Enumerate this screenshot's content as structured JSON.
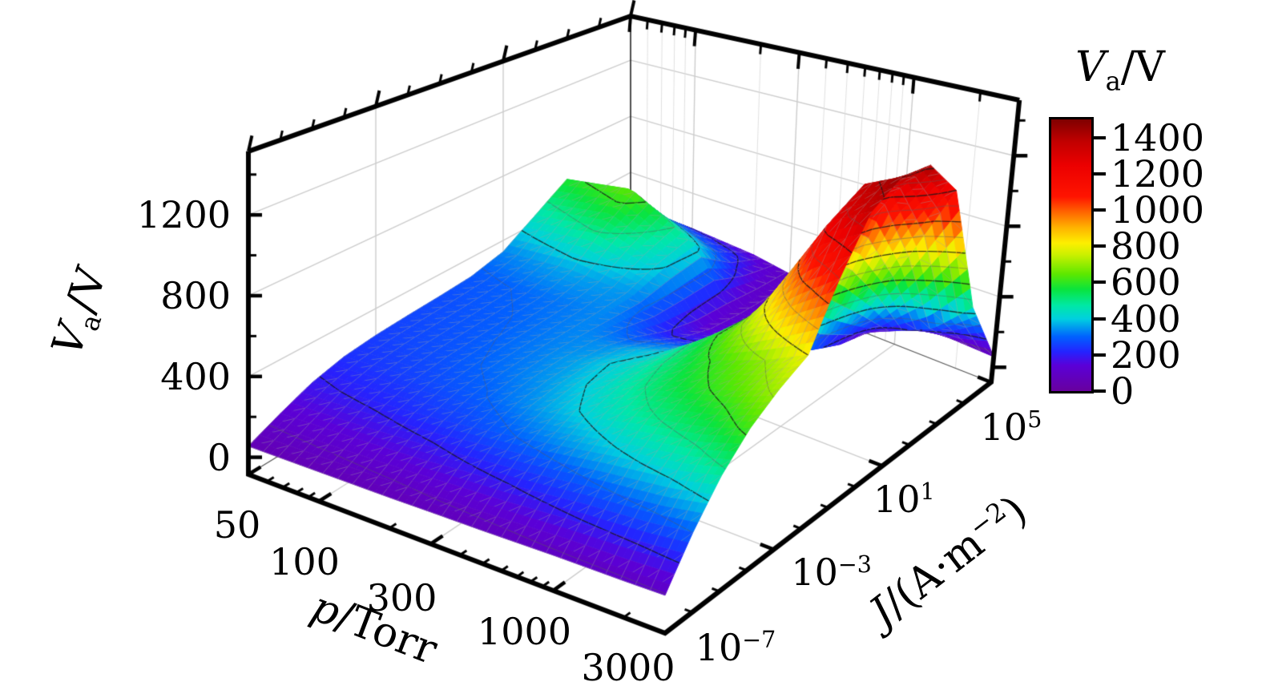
{
  "chart_data": {
    "type": "surface3d",
    "description": "3D surface of anode voltage versus pressure and current density",
    "x_axis": {
      "label": {
        "var": "J",
        "pre": "/(A·m",
        "sup": "−2",
        "post": ")"
      },
      "scale": "log",
      "range_exponents": [
        -7,
        5
      ],
      "ticks": [
        {
          "base": "10",
          "exp": "−7",
          "value": -7
        },
        {
          "base": "10",
          "exp": "−3",
          "value": -3
        },
        {
          "base": "10",
          "exp": "1",
          "value": 1
        },
        {
          "base": "10",
          "exp": "5",
          "value": 5
        }
      ],
      "minor_exponents": [
        -6,
        -5,
        -4,
        -2,
        -1,
        0,
        2,
        3,
        4
      ]
    },
    "y_axis": {
      "label": {
        "var": "p",
        "post": "/Torr"
      },
      "scale": "log",
      "range": [
        50,
        3000
      ],
      "ticks": [
        {
          "label": "50",
          "value": 50
        },
        {
          "label": "100",
          "value": 100
        },
        {
          "label": "300",
          "value": 300
        },
        {
          "label": "1000",
          "value": 1000
        },
        {
          "label": "3000",
          "value": 3000
        }
      ],
      "minor_values": [
        60,
        70,
        80,
        90,
        200,
        400,
        500,
        600,
        700,
        800,
        900,
        2000
      ]
    },
    "z_axis": {
      "label": {
        "var": "V",
        "sub": "a",
        "post": "/V"
      },
      "range": [
        -85,
        1515
      ],
      "ticks": [
        {
          "label": "0",
          "value": 0
        },
        {
          "label": "400",
          "value": 400
        },
        {
          "label": "800",
          "value": 800
        },
        {
          "label": "1200",
          "value": 1200
        }
      ],
      "minor_values": [
        200,
        600,
        1000,
        1400
      ]
    },
    "colorbar": {
      "title": {
        "var": "V",
        "sub": "a",
        "post": "/V"
      },
      "range": [
        0,
        1500
      ],
      "ticks": [
        {
          "label": "0",
          "value": 0
        },
        {
          "label": "200",
          "value": 200
        },
        {
          "label": "400",
          "value": 400
        },
        {
          "label": "600",
          "value": 600
        },
        {
          "label": "800",
          "value": 800
        },
        {
          "label": "1000",
          "value": 1000
        },
        {
          "label": "1200",
          "value": 1200
        },
        {
          "label": "1400",
          "value": 1400
        }
      ],
      "stops": [
        [
          0.0,
          "#68009e"
        ],
        [
          0.095,
          "#5a00d8"
        ],
        [
          0.145,
          "#2423ff"
        ],
        [
          0.2,
          "#0061ff"
        ],
        [
          0.265,
          "#00cfe0"
        ],
        [
          0.315,
          "#00e8a5"
        ],
        [
          0.375,
          "#0ae43c"
        ],
        [
          0.43,
          "#5ce800"
        ],
        [
          0.5,
          "#c8f000"
        ],
        [
          0.545,
          "#fdef00"
        ],
        [
          0.6,
          "#ffb400"
        ],
        [
          0.655,
          "#ff6a00"
        ],
        [
          0.715,
          "#ff1400"
        ],
        [
          0.83,
          "#ec0000"
        ],
        [
          0.92,
          "#c00000"
        ],
        [
          1.0,
          "#7f0000"
        ]
      ]
    },
    "surface": {
      "p_values": [
        50,
        100,
        200,
        300,
        500,
        1000,
        2000,
        3000
      ],
      "J_exponents": [
        -7,
        -6,
        -5,
        -4,
        -3,
        -2,
        -1,
        0,
        1,
        2,
        3,
        4,
        5
      ],
      "voltage_values": [
        [
          55,
          125,
          190,
          232,
          252,
          263,
          272,
          285,
          330,
          450,
          580,
          320,
          150
        ],
        [
          60,
          140,
          215,
          258,
          278,
          288,
          297,
          310,
          365,
          520,
          650,
          370,
          160
        ],
        [
          65,
          160,
          250,
          295,
          318,
          328,
          332,
          335,
          345,
          400,
          430,
          250,
          135
        ],
        [
          70,
          180,
          280,
          330,
          352,
          360,
          340,
          280,
          195,
          138,
          115,
          103,
          98
        ],
        [
          75,
          200,
          320,
          390,
          420,
          430,
          400,
          320,
          210,
          140,
          112,
          98,
          92
        ],
        [
          85,
          240,
          380,
          480,
          545,
          580,
          640,
          650,
          420,
          230,
          150,
          108,
          90
        ],
        [
          90,
          270,
          430,
          550,
          640,
          705,
          950,
          1250,
          1355,
          1200,
          800,
          260,
          70
        ],
        [
          95,
          300,
          480,
          620,
          720,
          800,
          1100,
          1360,
          1455,
          1430,
          1200,
          450,
          60
        ]
      ]
    },
    "contours": {
      "interval": 100,
      "major_interval": 200
    },
    "style": {
      "pane_grid_color": "#cccccc",
      "mesh_color": "rgba(160,160,160,0.5)",
      "contour_major_color": "rgba(25,25,25,0.8)",
      "contour_minor_color": "rgba(90,90,90,0.45)",
      "axis_color": "#000000"
    }
  }
}
